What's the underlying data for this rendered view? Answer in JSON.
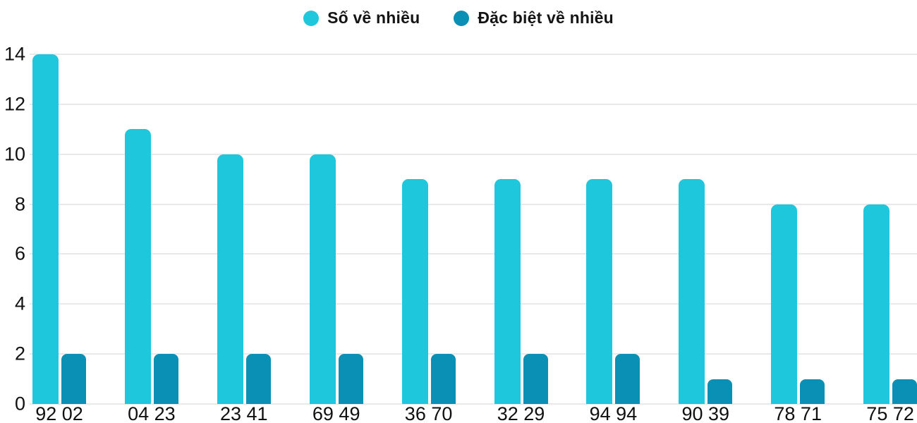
{
  "chart_data": {
    "type": "bar",
    "title": "",
    "xlabel": "",
    "ylabel": "",
    "categories": [
      "92 02",
      "04 23",
      "23 41",
      "69 49",
      "36 70",
      "32 29",
      "94 94",
      "90 39",
      "78 71",
      "75 72"
    ],
    "series": [
      {
        "name": "Số về nhiều",
        "color": "#1EC7DB",
        "values": [
          14,
          11,
          10,
          10,
          9,
          9,
          9,
          9,
          8,
          8
        ]
      },
      {
        "name": "Đặc biệt về nhiều",
        "color": "#0990B4",
        "values": [
          2,
          2,
          2,
          2,
          2,
          2,
          2,
          1,
          1,
          1
        ]
      }
    ],
    "ylim": [
      0,
      14
    ],
    "yticks": [
      0,
      2,
      4,
      6,
      8,
      10,
      12,
      14
    ],
    "grid": true,
    "legend_position": "top-center"
  },
  "colors": {
    "background": "#FFFFFF",
    "grid": "#E9E9E9",
    "text": "#111111",
    "series1": "#1EC7DB",
    "series2": "#0990B4"
  }
}
